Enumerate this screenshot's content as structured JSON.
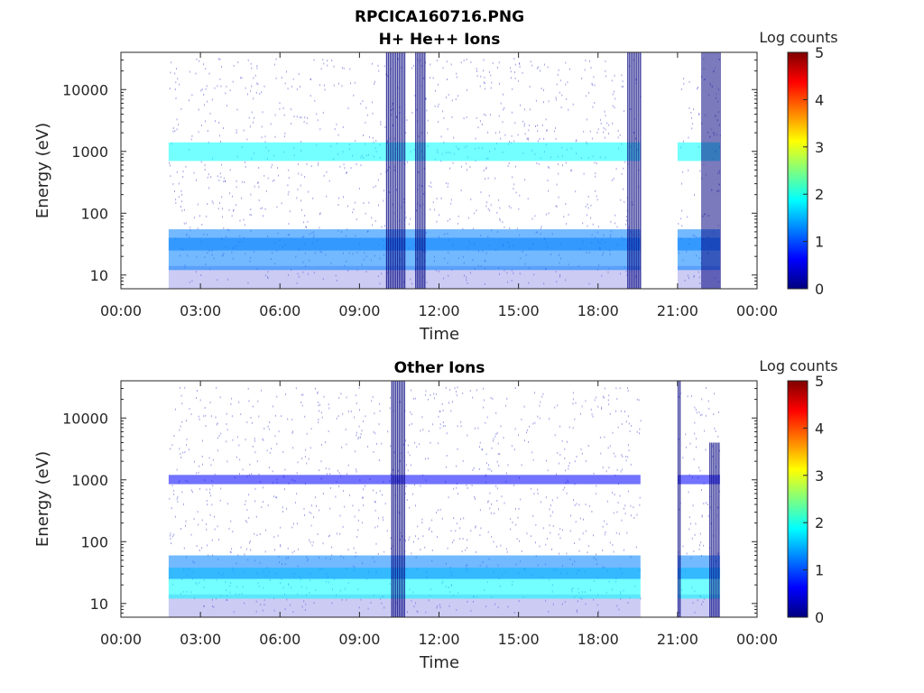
{
  "figure": {
    "filename_title": "RPCICA160716.PNG"
  },
  "colormap": [
    "#00007f",
    "#0000ff",
    "#007fff",
    "#00ffff",
    "#7fff7f",
    "#ffff00",
    "#ff7f00",
    "#ff0000",
    "#7f0000"
  ],
  "chart_data": [
    {
      "type": "heatmap",
      "title": "H+ He++ Ions",
      "xlabel": "Time",
      "ylabel": "Energy (eV)",
      "x_ticks": [
        "00:00",
        "03:00",
        "06:00",
        "09:00",
        "12:00",
        "15:00",
        "18:00",
        "21:00",
        "00:00"
      ],
      "xlim_hours": [
        0,
        24
      ],
      "y_scale": "log",
      "y_ticks": [
        "10",
        "100",
        "1000",
        "10000"
      ],
      "ylim": [
        6,
        40000
      ],
      "colorbar_label": "Log counts",
      "colorbar_ticks": [
        "0",
        "1",
        "2",
        "3",
        "4",
        "5"
      ],
      "colorbar_range": [
        0,
        5
      ],
      "data_coverage_hours": [
        [
          1.8,
          19.6
        ],
        [
          21.0,
          22.6
        ]
      ],
      "bands": [
        {
          "energy_low_ev": 700,
          "energy_high_ev": 1400,
          "log_counts": 2.0
        },
        {
          "energy_low_ev": 12,
          "energy_high_ev": 40,
          "log_counts": 1.0
        },
        {
          "energy_low_ev": 25,
          "energy_high_ev": 55,
          "log_counts": 1.2
        }
      ],
      "bursts": [
        {
          "start_hour": 10.0,
          "end_hour": 10.7,
          "energy_low_ev": 6,
          "energy_high_ev": 40000,
          "log_counts": 0.2
        },
        {
          "start_hour": 11.1,
          "end_hour": 11.5,
          "energy_low_ev": 6,
          "energy_high_ev": 40000,
          "log_counts": 0.1
        },
        {
          "start_hour": 19.1,
          "end_hour": 19.6,
          "energy_low_ev": 6,
          "energy_high_ev": 40000,
          "log_counts": 0.2
        },
        {
          "start_hour": 21.9,
          "end_hour": 22.6,
          "energy_low_ev": 6,
          "energy_high_ev": 40000,
          "log_counts": 0.2
        }
      ]
    },
    {
      "type": "heatmap",
      "title": "Other Ions",
      "xlabel": "Time",
      "ylabel": "Energy (eV)",
      "x_ticks": [
        "00:00",
        "03:00",
        "06:00",
        "09:00",
        "12:00",
        "15:00",
        "18:00",
        "21:00",
        "00:00"
      ],
      "xlim_hours": [
        0,
        24
      ],
      "y_scale": "log",
      "y_ticks": [
        "10",
        "100",
        "1000",
        "10000"
      ],
      "ylim": [
        6,
        40000
      ],
      "colorbar_label": "Log counts",
      "colorbar_ticks": [
        "0",
        "1",
        "2",
        "3",
        "4",
        "5"
      ],
      "colorbar_range": [
        0,
        5
      ],
      "data_coverage_hours": [
        [
          1.8,
          19.6
        ],
        [
          21.0,
          22.6
        ]
      ],
      "bands": [
        {
          "energy_low_ev": 850,
          "energy_high_ev": 1200,
          "log_counts": 0.8
        },
        {
          "energy_low_ev": 12,
          "energy_high_ev": 38,
          "log_counts": 1.8
        },
        {
          "energy_low_ev": 25,
          "energy_high_ev": 60,
          "log_counts": 1.0
        }
      ],
      "bursts": [
        {
          "start_hour": 10.2,
          "end_hour": 10.7,
          "energy_low_ev": 6,
          "energy_high_ev": 40000,
          "log_counts": 0.3
        },
        {
          "start_hour": 21.0,
          "end_hour": 21.1,
          "energy_low_ev": 6,
          "energy_high_ev": 40000,
          "log_counts": 0.3
        },
        {
          "start_hour": 22.2,
          "end_hour": 22.6,
          "energy_low_ev": 6,
          "energy_high_ev": 4000,
          "log_counts": 0.2
        }
      ]
    }
  ]
}
